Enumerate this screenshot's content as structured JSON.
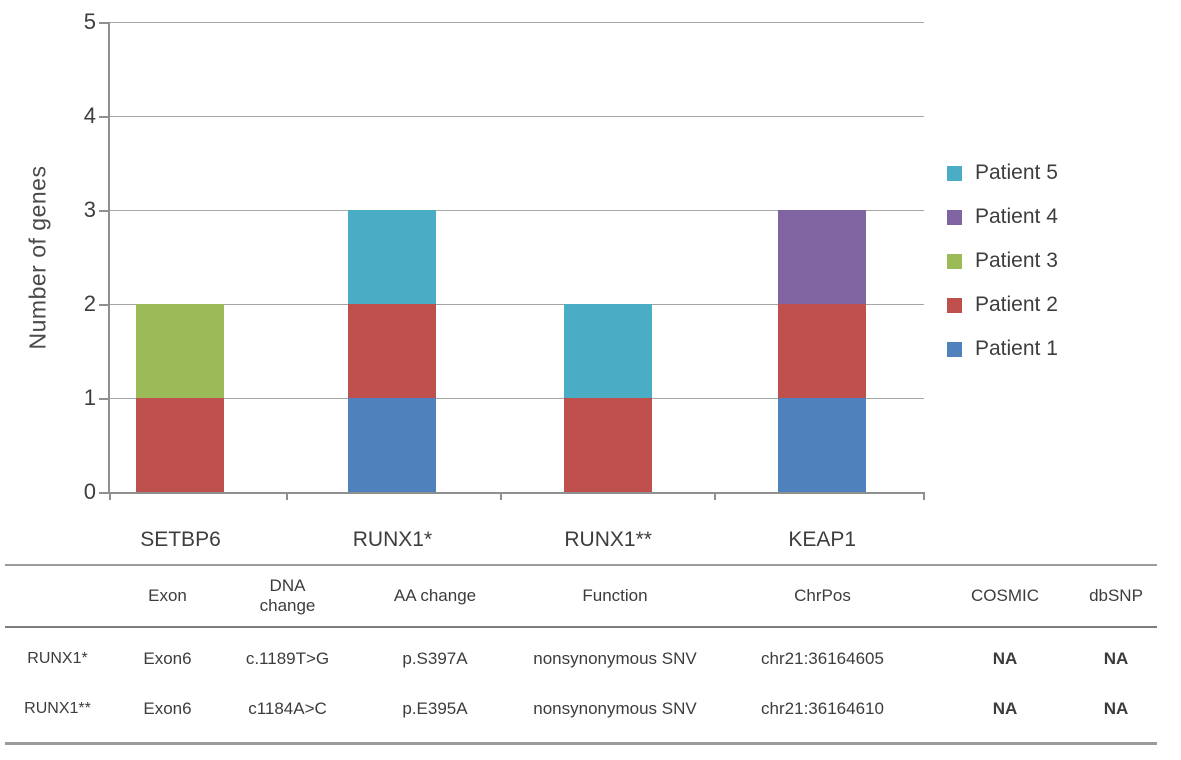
{
  "chart_data": {
    "type": "bar",
    "stacked": true,
    "title": "",
    "xlabel": "",
    "ylabel": "Number of genes",
    "ylim": [
      0,
      5
    ],
    "yticks": [
      0,
      1,
      2,
      3,
      4,
      5
    ],
    "grid": true,
    "categories": [
      "SETBP6",
      "RUNX1*",
      "RUNX1**",
      "KEAP1"
    ],
    "series": [
      {
        "name": "Patient 1",
        "color": "#4f81bd",
        "values": [
          0,
          1,
          0,
          1
        ]
      },
      {
        "name": "Patient 2",
        "color": "#c0504d",
        "values": [
          1,
          1,
          1,
          1
        ]
      },
      {
        "name": "Patient 3",
        "color": "#9bbb59",
        "values": [
          1,
          0,
          0,
          0
        ]
      },
      {
        "name": "Patient 4",
        "color": "#8064a2",
        "values": [
          0,
          0,
          0,
          1
        ]
      },
      {
        "name": "Patient 5",
        "color": "#4bacc6",
        "values": [
          0,
          1,
          1,
          0
        ]
      }
    ],
    "legend_position": "right",
    "legend_order": [
      "Patient 5",
      "Patient 4",
      "Patient 3",
      "Patient 2",
      "Patient 1"
    ]
  },
  "table": {
    "headers": [
      "",
      "Exon",
      "DNA change",
      "AA change",
      "Function",
      "ChrPos",
      "COSMIC",
      "dbSNP"
    ],
    "rows": [
      [
        "RUNX1*",
        "Exon6",
        "c.1189T>G",
        "p.S397A",
        "nonsynonymous SNV",
        "chr21:36164605",
        "NA",
        "NA"
      ],
      [
        "RUNX1**",
        "Exon6",
        "c1184A>C",
        "p.E395A",
        "nonsynonymous SNV",
        "chr21:36164610",
        "NA",
        "NA"
      ]
    ]
  }
}
